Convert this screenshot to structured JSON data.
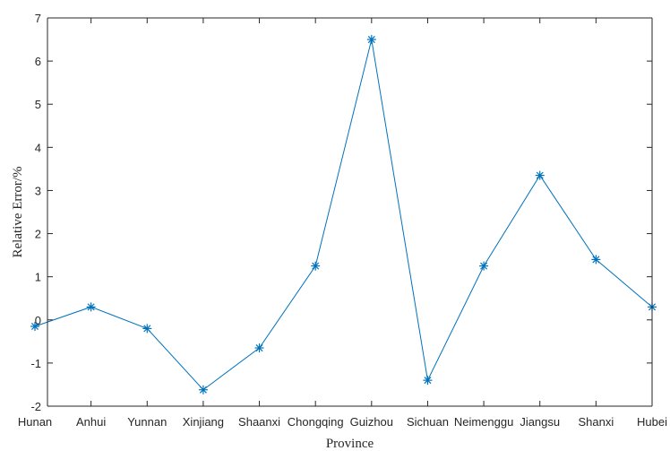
{
  "chart_data": {
    "type": "line",
    "title": "",
    "xlabel": "Province",
    "ylabel": "Relative Error/%",
    "categories": [
      "Hunan",
      "Anhui",
      "Yunnan",
      "Xinjiang",
      "Shaanxi",
      "Chongqing",
      "Guizhou",
      "Sichuan",
      "Neimenggu",
      "Jiangsu",
      "Shanxi",
      "Hubei"
    ],
    "series": [
      {
        "values": [
          -0.15,
          0.3,
          -0.2,
          -1.62,
          -0.65,
          1.25,
          6.5,
          -1.4,
          1.25,
          3.35,
          1.4,
          0.3
        ],
        "color": "#0072BD",
        "marker": "asterisk"
      }
    ],
    "ylim": [
      -2,
      7
    ],
    "yticks": [
      -2,
      -1,
      0,
      1,
      2,
      3,
      4,
      5,
      6,
      7
    ],
    "grid": false,
    "legend": "none"
  }
}
